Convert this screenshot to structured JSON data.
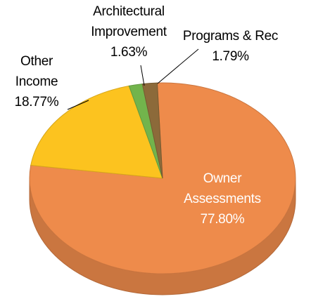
{
  "chart_data": {
    "type": "pie",
    "categories": [
      "Owner Assessments",
      "Other Income",
      "Architectural Improvement",
      "Programs & Rec"
    ],
    "values": [
      77.8,
      18.77,
      1.63,
      1.79
    ],
    "value_labels": [
      "77.80%",
      "18.77%",
      "1.63%",
      "1.79%"
    ],
    "colors": [
      "#ee8b4b",
      "#fcc31f",
      "#72b44c",
      "#8c6a3a"
    ]
  }
}
